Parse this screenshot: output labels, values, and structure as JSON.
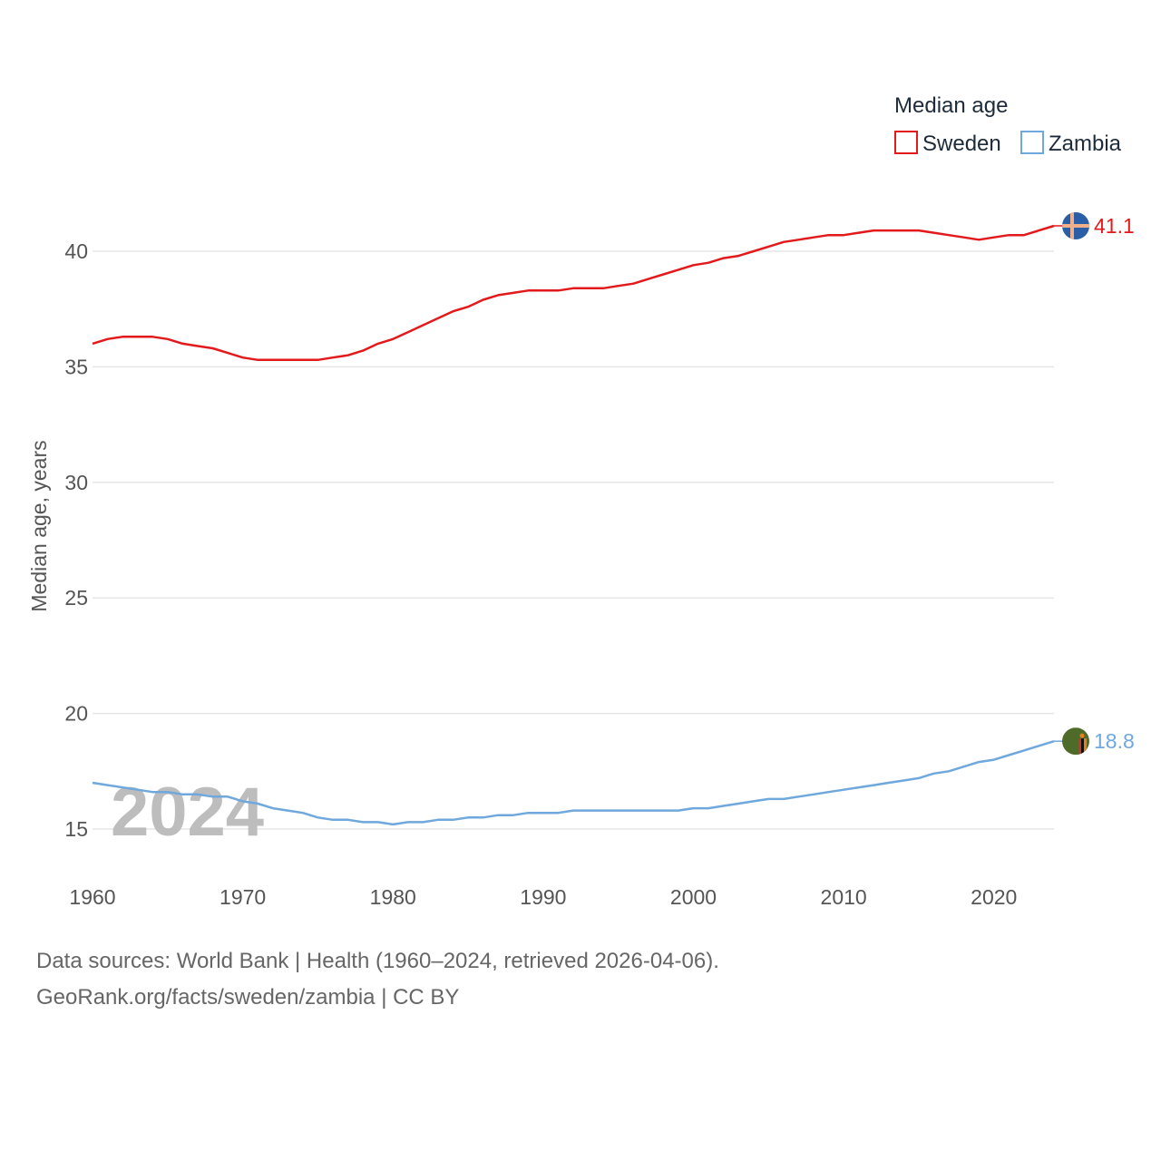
{
  "chart_data": {
    "type": "line",
    "legend_title": "Median age",
    "ylabel": "Median age, years",
    "xlabel": "",
    "xlim": [
      1960,
      2024
    ],
    "ylim": [
      13,
      42.5
    ],
    "x_ticks": [
      1960,
      1970,
      1980,
      1990,
      2000,
      2010,
      2020
    ],
    "y_ticks": [
      15,
      20,
      25,
      30,
      35,
      40
    ],
    "year_label": "2024",
    "legend_position": "top-right",
    "x": [
      1960,
      1961,
      1962,
      1963,
      1964,
      1965,
      1966,
      1967,
      1968,
      1969,
      1970,
      1971,
      1972,
      1973,
      1974,
      1975,
      1976,
      1977,
      1978,
      1979,
      1980,
      1981,
      1982,
      1983,
      1984,
      1985,
      1986,
      1987,
      1988,
      1989,
      1990,
      1991,
      1992,
      1993,
      1994,
      1995,
      1996,
      1997,
      1998,
      1999,
      2000,
      2001,
      2002,
      2003,
      2004,
      2005,
      2006,
      2007,
      2008,
      2009,
      2010,
      2011,
      2012,
      2013,
      2014,
      2015,
      2016,
      2017,
      2018,
      2019,
      2020,
      2021,
      2022,
      2023,
      2024
    ],
    "series": [
      {
        "name": "Sweden",
        "color": "#e31a1c",
        "end_label": "41.1",
        "flag_icon": "sweden-flag-icon",
        "values": [
          36.0,
          36.2,
          36.3,
          36.3,
          36.3,
          36.2,
          36.0,
          35.9,
          35.8,
          35.6,
          35.4,
          35.3,
          35.3,
          35.3,
          35.3,
          35.3,
          35.4,
          35.5,
          35.7,
          36.0,
          36.2,
          36.5,
          36.8,
          37.1,
          37.4,
          37.6,
          37.9,
          38.1,
          38.2,
          38.3,
          38.3,
          38.3,
          38.4,
          38.4,
          38.4,
          38.5,
          38.6,
          38.8,
          39.0,
          39.2,
          39.4,
          39.5,
          39.7,
          39.8,
          40.0,
          40.2,
          40.4,
          40.5,
          40.6,
          40.7,
          40.7,
          40.8,
          40.9,
          40.9,
          40.9,
          40.9,
          40.8,
          40.7,
          40.6,
          40.5,
          40.6,
          40.7,
          40.7,
          40.9,
          41.1
        ]
      },
      {
        "name": "Zambia",
        "color": "#6fa8dc",
        "end_label": "18.8",
        "flag_icon": "zambia-flag-icon",
        "values": [
          17.0,
          16.9,
          16.8,
          16.7,
          16.6,
          16.6,
          16.5,
          16.5,
          16.4,
          16.4,
          16.2,
          16.1,
          15.9,
          15.8,
          15.7,
          15.5,
          15.4,
          15.4,
          15.3,
          15.3,
          15.2,
          15.3,
          15.3,
          15.4,
          15.4,
          15.5,
          15.5,
          15.6,
          15.6,
          15.7,
          15.7,
          15.7,
          15.8,
          15.8,
          15.8,
          15.8,
          15.8,
          15.8,
          15.8,
          15.8,
          15.9,
          15.9,
          16.0,
          16.1,
          16.2,
          16.3,
          16.3,
          16.4,
          16.5,
          16.6,
          16.7,
          16.8,
          16.9,
          17.0,
          17.1,
          17.2,
          17.4,
          17.5,
          17.7,
          17.9,
          18.0,
          18.2,
          18.4,
          18.6,
          18.8
        ]
      }
    ]
  },
  "footer": {
    "line1": "Data sources: World Bank | Health (1960–2024, retrieved 2026-04-06).",
    "line2": "GeoRank.org/facts/sweden/zambia | CC BY"
  }
}
